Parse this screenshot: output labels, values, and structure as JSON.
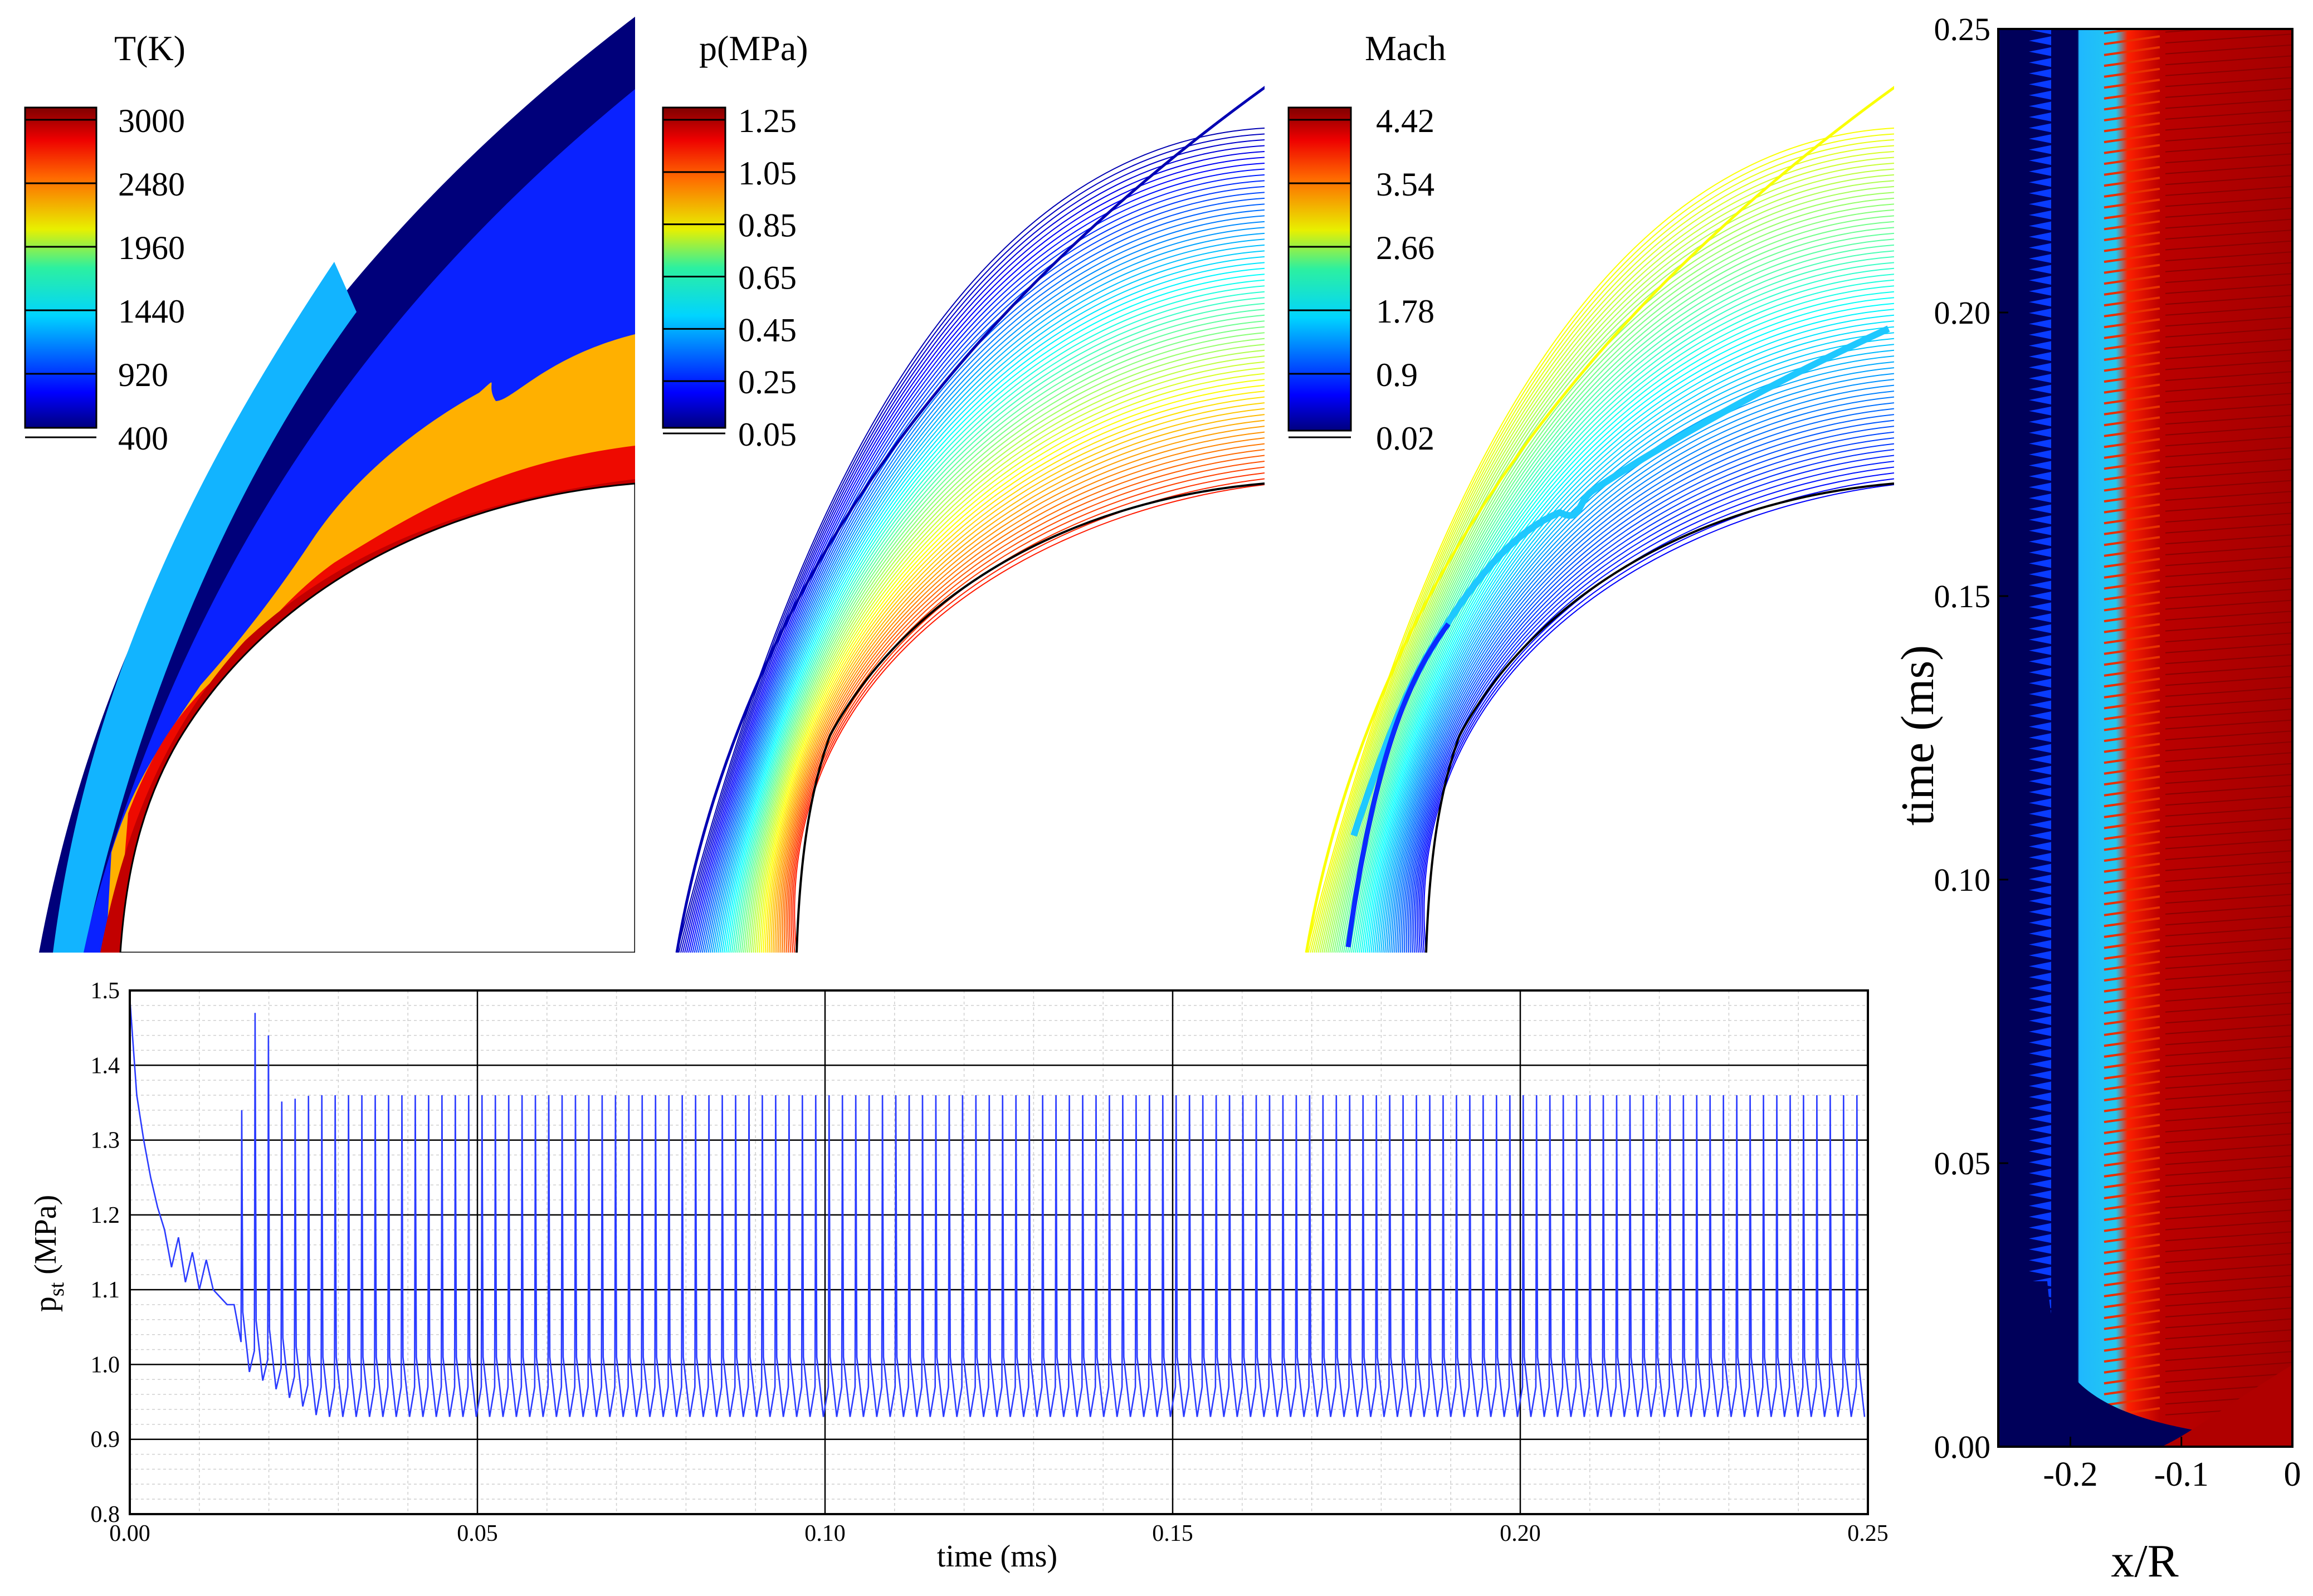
{
  "chart_data": [
    {
      "type": "heatmap",
      "panel": "temperature-contour",
      "legend": {
        "title": "T(K)",
        "levels": [
          "3000",
          "2480",
          "1960",
          "1440",
          "920",
          "400"
        ]
      }
    },
    {
      "type": "heatmap",
      "panel": "pressure-contour",
      "legend": {
        "title": "p(MPa)",
        "levels": [
          "1.25",
          "1.05",
          "0.85",
          "0.65",
          "0.45",
          "0.25",
          "0.05"
        ]
      }
    },
    {
      "type": "heatmap",
      "panel": "mach-contour",
      "legend": {
        "title": "Mach",
        "levels": [
          "4.42",
          "3.54",
          "2.66",
          "1.78",
          "0.9",
          "0.02"
        ]
      }
    },
    {
      "type": "heatmap",
      "panel": "x-t-diagram",
      "xlabel": "x/R",
      "ylabel": "time (ms)",
      "xlim": [
        -0.265,
        0
      ],
      "ylim": [
        0,
        0.25
      ],
      "xticks": [
        "-0.2",
        "-0.1",
        "0"
      ],
      "yticks": [
        "0.00",
        "0.05",
        "0.10",
        "0.15",
        "0.20",
        "0.25"
      ]
    },
    {
      "type": "line",
      "panel": "pressure-history",
      "xlabel": "time (ms)",
      "ylabel": {
        "main": "p",
        "sub": "st",
        "unit": " (MPa)"
      },
      "xlim": [
        0,
        0.25
      ],
      "ylim": [
        0.8,
        1.5
      ],
      "xticks": [
        "0.00",
        "0.05",
        "0.10",
        "0.15",
        "0.20",
        "0.25"
      ],
      "yticks": [
        "0.8",
        "0.9",
        "1.0",
        "1.1",
        "1.2",
        "1.3",
        "1.4",
        "1.5"
      ],
      "series": [
        {
          "name": "p_st",
          "color": "#2b3bff",
          "initial_transient": {
            "t": [
              0.0,
              0.001,
              0.002,
              0.003,
              0.004,
              0.005,
              0.006,
              0.007,
              0.008,
              0.009,
              0.01,
              0.011,
              0.012,
              0.013,
              0.014,
              0.015
            ],
            "p": [
              1.49,
              1.36,
              1.3,
              1.25,
              1.21,
              1.18,
              1.15,
              1.14,
              1.13,
              1.12,
              1.12,
              1.11,
              1.1,
              1.09,
              1.08,
              1.08
            ]
          },
          "early_peaks_t": [
            0.017,
            0.019
          ],
          "early_peaks_p": [
            1.47,
            1.44
          ],
          "steady_period": 0.00192,
          "steady_max": 1.36,
          "steady_min": 0.93
        }
      ]
    }
  ]
}
